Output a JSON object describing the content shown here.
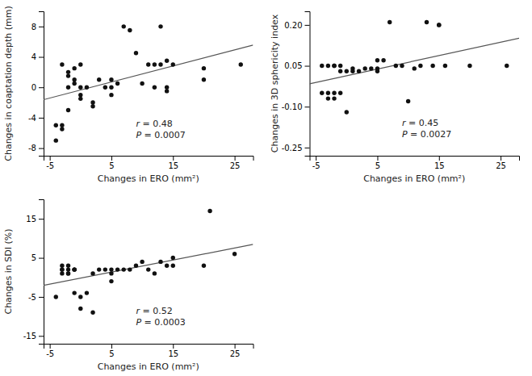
{
  "chart_data": [
    {
      "type": "scatter",
      "x": [
        -4,
        -4,
        -3,
        -3,
        -3,
        -2,
        -2,
        -2,
        -2,
        -1,
        -1,
        -1,
        0,
        0,
        0,
        0,
        1,
        2,
        2,
        3,
        4,
        5,
        5,
        5,
        6,
        7,
        8,
        9,
        10,
        11,
        12,
        12,
        13,
        13,
        14,
        14,
        14,
        15,
        20,
        20,
        26
      ],
      "values": [
        -5,
        -7,
        -5,
        -5.5,
        3,
        2,
        1.5,
        0,
        -3,
        0.5,
        1,
        2.5,
        0,
        -1,
        -1.5,
        3,
        0,
        -2,
        -2.5,
        1,
        0,
        1,
        0,
        -1,
        0.5,
        8,
        7.5,
        4.5,
        0.5,
        3,
        3,
        0,
        3,
        8,
        3.5,
        0,
        -0.5,
        3,
        1,
        2.5,
        3
      ],
      "color": "#111111",
      "trend_line": {
        "x": [
          -6,
          28
        ],
        "values": [
          -1.62325,
          5.55759
        ],
        "color": "#555555"
      },
      "xlabel": "Changes in ERO (mm²)",
      "ylabel": "Changes in coaptation depth (mm)",
      "xlim": [
        -6,
        28
      ],
      "ylim": [
        -9,
        10
      ],
      "xticks": [
        -5,
        5,
        15,
        25
      ],
      "yticks": [
        -8,
        -4,
        0,
        4,
        8
      ],
      "annotation": {
        "lines": [
          "r = 0.48",
          "P = 0.0007"
        ],
        "x": 9,
        "y": -5.5
      }
    },
    {
      "type": "scatter",
      "x": [
        -4,
        -4,
        -3,
        -3,
        -3,
        -2,
        -2,
        -2,
        -2,
        -1,
        -1,
        -1,
        0,
        0,
        1,
        1,
        2,
        3,
        4,
        5,
        5,
        5,
        6,
        7,
        8,
        9,
        10,
        11,
        12,
        13,
        14,
        15,
        15,
        16,
        20,
        26
      ],
      "values": [
        -0.05,
        0.05,
        -0.05,
        -0.07,
        0.05,
        0.05,
        -0.05,
        -0.07,
        0.05,
        -0.05,
        0.03,
        0.05,
        0.03,
        -0.12,
        0.04,
        0.03,
        0.03,
        0.04,
        0.04,
        0.07,
        0.04,
        0.03,
        0.07,
        0.21,
        0.05,
        0.05,
        -0.08,
        0.04,
        0.05,
        0.21,
        0.05,
        0.2,
        0.2,
        0.05,
        0.05,
        0.05
      ],
      "color": "#111111",
      "trend_line": {
        "x": [
          -6,
          28
        ],
        "values": [
          -0.016184,
          0.151466
        ],
        "color": "#555555"
      },
      "xlabel": "Changes in ERO (mm²)",
      "ylabel": "Changes in 3D sphericity index",
      "xlim": [
        -6,
        28
      ],
      "ylim": [
        -0.28,
        0.25
      ],
      "xticks": [
        -5,
        5,
        15,
        25
      ],
      "yticks": [
        -0.25,
        {
          "value": -0.1,
          "label": "-0.10"
        },
        0.05,
        {
          "value": 0.2,
          "label": "0.20"
        }
      ],
      "annotation": {
        "lines": [
          "r = 0.45",
          "P = 0.0027"
        ],
        "x": 9,
        "y": -0.18
      }
    },
    {
      "type": "scatter",
      "x": [
        -4,
        -3,
        -3,
        -3,
        -3,
        -2,
        -2,
        -2,
        -2,
        -1,
        -1,
        -1,
        -1,
        0,
        0,
        1,
        2,
        2,
        3,
        4,
        5,
        5,
        5,
        6,
        7,
        8,
        9,
        10,
        11,
        12,
        13,
        14,
        15,
        15,
        20,
        21,
        25
      ],
      "values": [
        -5,
        2,
        2,
        3,
        1,
        2,
        1,
        3,
        1,
        2,
        2,
        -4,
        2,
        -5,
        -8,
        -4,
        1,
        -9,
        2,
        2,
        2,
        1,
        -1,
        2,
        2,
        2,
        3,
        4,
        2,
        1,
        4,
        3,
        3,
        5,
        3,
        17,
        6
      ],
      "color": "#111111",
      "trend_line": {
        "x": [
          -6,
          28
        ],
        "values": [
          -2.04358,
          8.44985
        ],
        "color": "#555555"
      },
      "xlabel": "Changes in ERO (mm²)",
      "ylabel": "Changes in SDI (%)",
      "xlim": [
        -6,
        28
      ],
      "ylim": [
        -17,
        20
      ],
      "xticks": [
        -5,
        5,
        15,
        25
      ],
      "yticks": [
        -15,
        -5,
        5,
        15
      ],
      "annotation": {
        "lines": [
          "r = 0.52",
          "P = 0.0003"
        ],
        "x": 9,
        "y": -10
      }
    }
  ]
}
